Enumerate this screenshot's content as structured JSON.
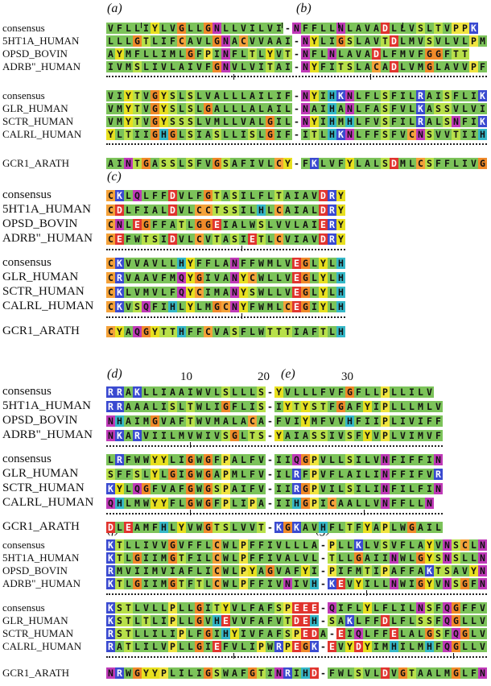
{
  "panels": {
    "a": "(a)",
    "b": "(b)",
    "c": "(c)",
    "d": "(d)",
    "e": "(e)",
    "f": "(f)",
    "g": "(g)"
  },
  "numbers": {
    "n10": "10",
    "n20": "20",
    "n30": "30"
  },
  "blocks": [
    {
      "id": "block1",
      "rows": [
        {
          "label": "consensus",
          "seq": "VFLLIYLVGLLGNLLVILVI-NFFLLNLAVADLLVSLTVPPK"
        },
        {
          "label": "5HT1A_HUMAN",
          "seq": "LLLGTLIFCAVLGNACVVAAI-NYLIGSLAVTDLMVSVLVLPM"
        },
        {
          "label": "OPSD_BOVIN",
          "seq": "AYMFLLIMLGFPINFLTLYVT-NFLNLAVADLFMVFGGFTT"
        },
        {
          "label": "ADRB\"_HUMAN",
          "seq": "IVMSLIVLAIVFGNVLVITAI-NYFITSLACADLVMGLAVVPF"
        }
      ],
      "rows2": [
        {
          "label": "consensus",
          "seq": "VIYTVGYSLSLVALLLAILIF-NYIHKNLFLSFILRAISFLIK"
        },
        {
          "label": "GLR_HUMAN",
          "seq": "VMYTVGYSLSLGALLLALAIL-NAIHANLFASFVLKASSVLVI"
        },
        {
          "label": "SCTR_HUMAN",
          "seq": "VMYTVGYSSSLVMLLVALGIL-NYIHMHLFVSFILRALSNFIK"
        },
        {
          "label": "CALRL_HUMAN",
          "seq": "YLTIIGHGLSIASLLISLGIF-ITLHKNLFFSFVCNSVVTIIH"
        }
      ],
      "gcr": {
        "label": "GCR1_ARATH",
        "seq": "AINTGASSLSFVGSAFIVLCY-FKLVFYLALSDMLCSFFLIVG"
      }
    },
    {
      "id": "block2",
      "rows": [
        {
          "label": "consensus",
          "seq": "CKLQLFFDVLFGTASILFLTAIAVDRY"
        },
        {
          "label": "5HT1A_HUMAN",
          "seq": "CDLFIALDVLCCTSSILHLCAIALDRY"
        },
        {
          "label": "OPSD_BOVIN",
          "seq": "CNLEGFFATLGGEIALWSLVVLAIERY"
        },
        {
          "label": "ADRB\"_HUMAN",
          "seq": "CEFWTSIDVLCVTASIETLCVIAVDRY"
        }
      ],
      "rows2": [
        {
          "label": "consensus",
          "seq": "CKVVAVLLHYFFLANFFWMLVEGLYLH"
        },
        {
          "label": "GLR_HUMAN",
          "seq": "CRVAAVFMQYGIVANYCWLLVEGLYLH"
        },
        {
          "label": "SCTR_HUMAN",
          "seq": "CKLVMVLFQYCIMANYSWLLVEGLYLH"
        },
        {
          "label": "CALRL_HUMAN",
          "seq": "CKVSQFIHLYLMGCNYFWMLCEGIYLH"
        }
      ],
      "gcr": {
        "label": "GCR1_ARATH",
        "seq": "CYAQGYTTHFFCVASFLWTTTIAFTLH"
      }
    },
    {
      "id": "block3",
      "rows": [
        {
          "label": "consensus",
          "seq": "RRAKLLIAAIWVLSLLLS-YVLLLFVFGFLLPLLILV"
        },
        {
          "label": "5HT1A_HUMAN",
          "seq": "RRAAALISLTWLIGFLIS-IYTYSTFGAFYIPLLLMLV"
        },
        {
          "label": "OPSD_BOVIN",
          "seq": "NHAIMGVAFTWVMALACA-FVIYMFVVHFIIPLIVIFF"
        },
        {
          "label": "ADRB\"_HUMAN",
          "seq": "NKARVIILMVWIVSGLTS-YAIASSIVSFYVPLVIMVF"
        }
      ],
      "rows2": [
        {
          "label": "consensus",
          "seq": "LRFWWYYLIGWGFPALFV-IIQGPVLLSILVNFIFFIN"
        },
        {
          "label": "GLR_HUMAN",
          "seq": "SFFSLYLGIGWGAPMLFV-ILRFPVFLAILINFFIFVR"
        },
        {
          "label": "SCTR_HUMAN",
          "seq": "KYLQGFVAFGWGSPAIFV-IIRGPVILSILINFILFIN"
        },
        {
          "label": "CALRL_HUMAN",
          "seq": "QHLMWYYFLGWGFPLIPA-IIHGPICAALLVNFFLLN"
        }
      ],
      "gcr": {
        "label": "GCR1_ARATH",
        "seq": "DLEAMFHLYVWGTSLVVT-KGKAVHFLTFYAPLWGAIL"
      }
    },
    {
      "id": "block4",
      "rows": [
        {
          "label": "consensus",
          "seq": "KTLLIVVGVFFLCWLPFFIVLLLA-PLLKLVSVFLAYVNSCLNPIIY"
        },
        {
          "label": "5HT1A_HUMAN",
          "seq": "KTLGIIMGTFILCWLPFFIVALVL-TLLGAIINWLGYSNSLLNPVIY"
        },
        {
          "label": "OPSD_BOVIN",
          "seq": "RMVIIMVIAFLICWLPYAGVAFYI-PIFMTIPAFFAKTSAVYNPVIY"
        },
        {
          "label": "ADRB\"_HUMAN",
          "seq": "KTLGIIMGTFTLCWLPFFIVNIVH-KEVYILLNWIGYVNSGFNPLIY"
        }
      ],
      "rows2": [
        {
          "label": "consensus",
          "seq": "KSTLVLLPLLGITYVLFAFSPEEE-QIFLYLFLILNSFQGFFVAVLY"
        },
        {
          "label": "GLR_HUMAN",
          "seq": "KSTLTLIPLLGVHEVVFAFVTDEH-SAKLFFDLFLSSFQGLLVAVLY"
        },
        {
          "label": "SCTR_HUMAN",
          "seq": "RSTLLILIPLFGIHYIVFAFSPEDA-EIQLFFELALGSFQGLVVAVLY"
        },
        {
          "label": "CALRL_HUMAN",
          "seq": "RATLILVPLLGIEFVLIPWRPEGK-EVYDYIMHILMHFQGLLVSTIF"
        }
      ],
      "gcr": {
        "label": "GCR1_ARATH",
        "seq": "NRWGYYPLILIGSWAFGTINRIHD-FWLSVLDVGTAALMGLFNSIAY"
      }
    }
  ],
  "colors": {
    "hydrophobic_green": "#7cc35a",
    "aromatic_yellow": "#e8e020",
    "cysteine_orange": "#f4a23a",
    "acidic_red": "#e0342e",
    "basic_blue": "#3a4ad0",
    "polar_lime": "#b8e04a",
    "glycine_orange": "#f08a2a",
    "proline_yellow": "#f0e440",
    "histidine_cyan": "#35b8c8",
    "amide_magenta": "#c03ab8"
  }
}
